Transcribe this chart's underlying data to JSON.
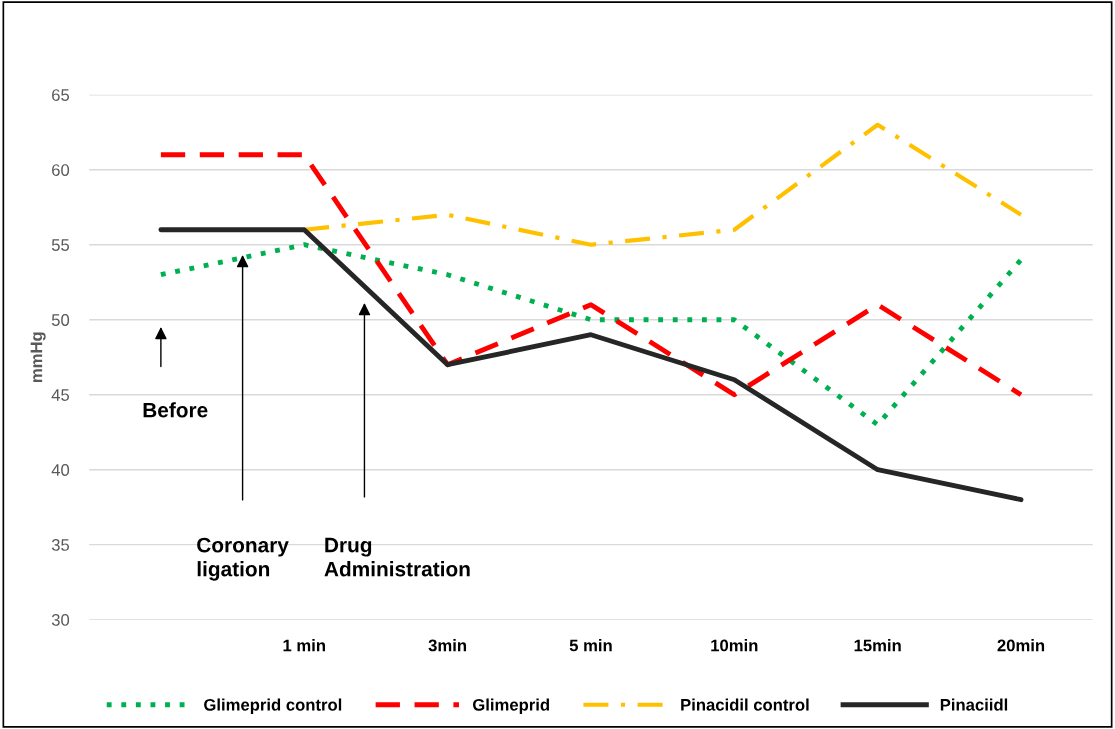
{
  "chart_data": {
    "type": "line",
    "ylabel": "mmHg",
    "categories": [
      null,
      "1 min",
      "3min",
      "5 min",
      "10min",
      "15min",
      "20min"
    ],
    "series": [
      {
        "name": "Glimeprid control",
        "color": "#00b050",
        "line_style": "dotted",
        "values": [
          53,
          55,
          53,
          50,
          50,
          43,
          54
        ]
      },
      {
        "name": "Glimeprid",
        "color": "#ff0000",
        "line_style": "dashed",
        "values": [
          61,
          61,
          47,
          51,
          45,
          51,
          45
        ]
      },
      {
        "name": "Pinacidil control",
        "color": "#ffc000",
        "line_style": "dashdot",
        "values": [
          null,
          56,
          57,
          55,
          56,
          63,
          57
        ]
      },
      {
        "name": "Pinaciidl",
        "color": "#262626",
        "line_style": "solid",
        "values": [
          56,
          56,
          47,
          49,
          46,
          40,
          38
        ]
      }
    ],
    "ylim": [
      30,
      65
    ],
    "yticks": [
      30,
      35,
      40,
      45,
      50,
      55,
      60,
      65
    ],
    "grid": "y",
    "legend": "bottom",
    "marker": "none",
    "annotations": [
      "Before",
      "Coronary ligation",
      "Drug Administration"
    ]
  }
}
